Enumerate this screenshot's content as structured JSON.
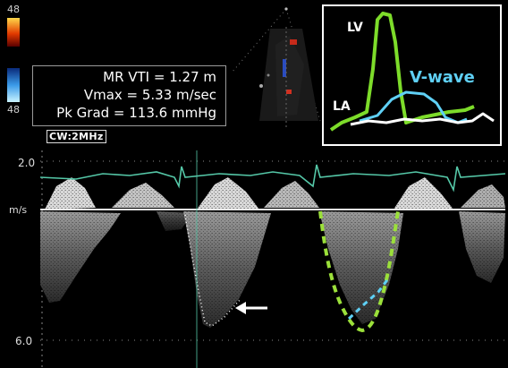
{
  "scale": {
    "top_value": "48",
    "bottom_value": "48"
  },
  "readout": {
    "mr_vti": "MR VTI = 1.27 m",
    "vmax": "Vmax = 5.33 m/sec",
    "pk_grad": "Pk Grad = 113.6 mmHg"
  },
  "probe_label": "CW:2MHz",
  "inset": {
    "lv_label": "LV",
    "la_label": "LA",
    "v_wave_label": "V-wave"
  },
  "velocity_axis": {
    "top_value": "2.0",
    "unit": "m/s",
    "bottom_value": "6.0"
  },
  "colors": {
    "lv_curve": "#7ddc2a",
    "v_wave": "#5fd0f5",
    "la_curve": "#ffffff",
    "ecg_trace": "#55c8a8",
    "envelope_dash_green": "#9be03a",
    "envelope_dash_cyan": "#5fd0f5"
  }
}
